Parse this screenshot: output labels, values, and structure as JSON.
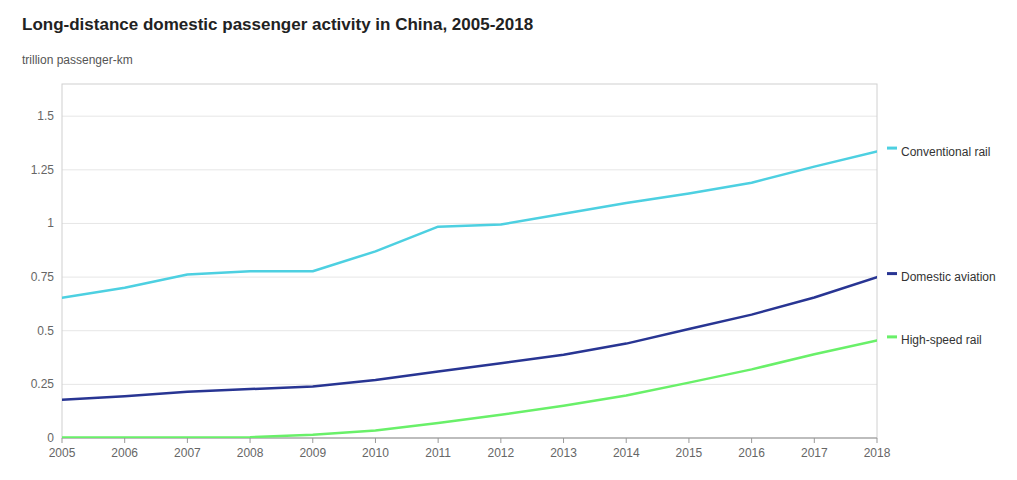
{
  "chart_data": {
    "type": "line",
    "title": "Long-distance domestic passenger activity in China, 2005-2018",
    "y_label": "trillion passenger-km",
    "x": [
      2005,
      2006,
      2007,
      2008,
      2009,
      2010,
      2011,
      2012,
      2013,
      2014,
      2015,
      2016,
      2017,
      2018
    ],
    "series": [
      {
        "name": "Conventional rail",
        "color": "#4dd0e1",
        "values": [
          0.654,
          0.7,
          0.762,
          0.777,
          0.777,
          0.87,
          0.985,
          0.995,
          1.045,
          1.095,
          1.14,
          1.19,
          1.265,
          1.335
        ]
      },
      {
        "name": "Domestic aviation",
        "color": "#283593",
        "values": [
          0.178,
          0.195,
          0.215,
          0.228,
          0.24,
          0.27,
          0.31,
          0.348,
          0.388,
          0.44,
          0.508,
          0.575,
          0.655,
          0.75
        ]
      },
      {
        "name": "High-speed rail",
        "color": "#69f069",
        "values": [
          0.002,
          0.002,
          0.002,
          0.004,
          0.015,
          0.035,
          0.07,
          0.108,
          0.15,
          0.198,
          0.258,
          0.32,
          0.39,
          0.455
        ]
      }
    ],
    "xlim": [
      2005,
      2018
    ],
    "xticks": [
      2005,
      2006,
      2007,
      2008,
      2009,
      2010,
      2011,
      2012,
      2013,
      2014,
      2015,
      2016,
      2017,
      2018
    ],
    "ylim": [
      0,
      1.65
    ],
    "yticks": [
      0,
      0.25,
      0.5,
      0.75,
      1,
      1.25,
      1.5
    ],
    "grid": true
  }
}
